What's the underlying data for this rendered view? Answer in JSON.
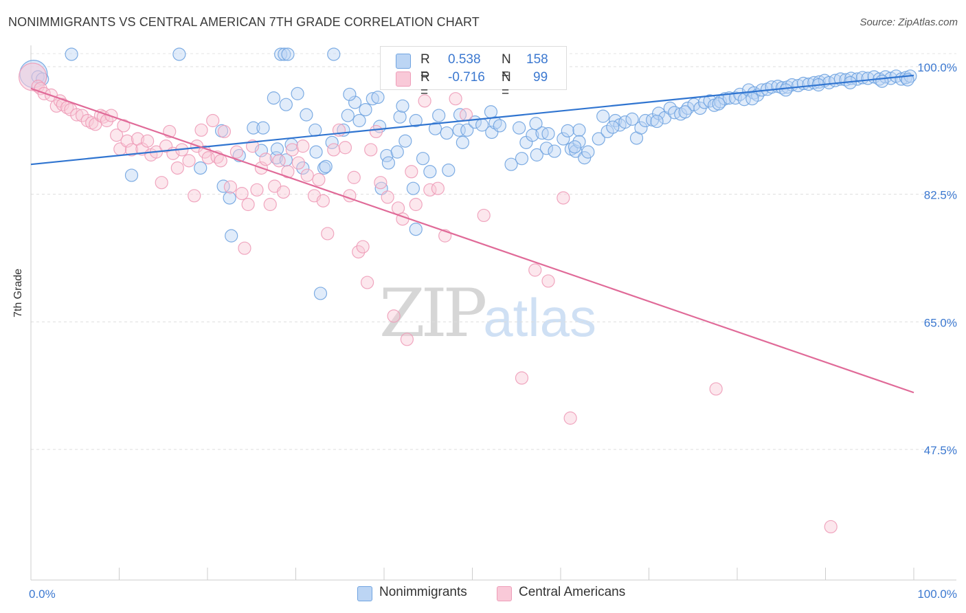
{
  "header": {
    "title": "NONIMMIGRANTS VS CENTRAL AMERICAN 7TH GRADE CORRELATION CHART",
    "source": "Source: ZipAtlas.com"
  },
  "watermark": {
    "zip": "ZIP",
    "atlas": "atlas"
  },
  "legend": {
    "rows": [
      {
        "r_label": "R =",
        "r_value": "0.538",
        "n_label": "N =",
        "n_value": "158",
        "color": "#a8c8f0"
      },
      {
        "r_label": "R =",
        "r_value": "-0.716",
        "n_label": "N =",
        "n_value": "99",
        "color": "#f6b8cb"
      }
    ]
  },
  "bottom_legend": [
    {
      "label": "Nonimmigrants",
      "color": "#a8c8f0"
    },
    {
      "label": "Central Americans",
      "color": "#f6b8cb"
    }
  ],
  "chart_data": {
    "type": "scatter",
    "title": "NONIMMIGRANTS VS CENTRAL AMERICAN 7TH GRADE CORRELATION CHART",
    "xlabel": "",
    "ylabel": "7th Grade",
    "xlim": [
      0,
      100
    ],
    "ylim": [
      32,
      100
    ],
    "x_tick_labels": [
      "0.0%",
      "100.0%"
    ],
    "y_ticks": [
      100,
      82.5,
      65,
      47.5
    ],
    "y_tick_labels": [
      "100.0%",
      "82.5%",
      "65.0%",
      "47.5%"
    ],
    "grid": true,
    "colors": {
      "blue_fill": "#a8c8f0",
      "blue_line": "#2f74d0",
      "pink_fill": "#f6b8cb",
      "pink_line": "#e06a98",
      "axis_text": "#3b78d0"
    },
    "series": [
      {
        "name": "Nonimmigrants",
        "color": "#6fa3e0",
        "trend": {
          "x": [
            0,
            100
          ],
          "y": [
            86.6,
            98.8
          ]
        },
        "points": [
          [
            0.3,
            99.0
          ],
          [
            0.8,
            98.6
          ],
          [
            1.3,
            98.3
          ],
          [
            4.6,
            101.7
          ],
          [
            11.4,
            85.1
          ],
          [
            16.8,
            101.7
          ],
          [
            19.2,
            86.1
          ],
          [
            21.6,
            91.2
          ],
          [
            21.8,
            83.6
          ],
          [
            22.5,
            82.0
          ],
          [
            22.7,
            76.8
          ],
          [
            23.6,
            87.8
          ],
          [
            25.2,
            91.6
          ],
          [
            26.1,
            88.5
          ],
          [
            26.3,
            91.6
          ],
          [
            27.5,
            95.7
          ],
          [
            27.8,
            87.5
          ],
          [
            27.9,
            88.7
          ],
          [
            28.3,
            101.7
          ],
          [
            28.7,
            101.7
          ],
          [
            29.1,
            101.7
          ],
          [
            28.9,
            94.8
          ],
          [
            29.5,
            89.3
          ],
          [
            30.2,
            96.3
          ],
          [
            30.8,
            86.1
          ],
          [
            31.2,
            93.4
          ],
          [
            32.2,
            91.3
          ],
          [
            32.3,
            88.3
          ],
          [
            32.8,
            68.9
          ],
          [
            33.2,
            86.1
          ],
          [
            33.4,
            86.3
          ],
          [
            34.1,
            89.6
          ],
          [
            34.3,
            101.7
          ],
          [
            35.4,
            91.3
          ],
          [
            35.9,
            93.3
          ],
          [
            36.7,
            95.1
          ],
          [
            37.2,
            92.6
          ],
          [
            37.9,
            94.1
          ],
          [
            38.7,
            95.6
          ],
          [
            39.3,
            95.8
          ],
          [
            39.5,
            91.8
          ],
          [
            39.7,
            83.3
          ],
          [
            40.3,
            87.8
          ],
          [
            40.5,
            86.8
          ],
          [
            41.5,
            88.3
          ],
          [
            41.8,
            93.1
          ],
          [
            42.4,
            89.8
          ],
          [
            43.3,
            83.3
          ],
          [
            43.6,
            92.6
          ],
          [
            43.6,
            77.7
          ],
          [
            44.4,
            87.4
          ],
          [
            45.2,
            85.6
          ],
          [
            45.8,
            91.5
          ],
          [
            46.2,
            93.3
          ],
          [
            47.3,
            85.8
          ],
          [
            48.5,
            91.3
          ],
          [
            48.6,
            93.4
          ],
          [
            48.9,
            89.6
          ],
          [
            49.4,
            91.3
          ],
          [
            50.3,
            92.4
          ],
          [
            51.1,
            92.0
          ],
          [
            52.2,
            91.0
          ],
          [
            52.6,
            92.3
          ],
          [
            53.1,
            91.9
          ],
          [
            54.4,
            86.6
          ],
          [
            55.3,
            91.6
          ],
          [
            55.6,
            87.4
          ],
          [
            56.1,
            89.6
          ],
          [
            56.8,
            90.6
          ],
          [
            57.3,
            87.9
          ],
          [
            57.9,
            90.9
          ],
          [
            58.4,
            88.8
          ],
          [
            58.6,
            90.8
          ],
          [
            59.3,
            88.4
          ],
          [
            60.3,
            90.1
          ],
          [
            60.8,
            91.2
          ],
          [
            61.2,
            88.7
          ],
          [
            61.7,
            88.4
          ],
          [
            62.1,
            91.3
          ],
          [
            62.7,
            87.5
          ],
          [
            63.1,
            88.3
          ],
          [
            64.3,
            90.1
          ],
          [
            64.8,
            93.2
          ],
          [
            65.3,
            91.1
          ],
          [
            66.2,
            92.6
          ],
          [
            66.7,
            92.0
          ],
          [
            67.3,
            92.4
          ],
          [
            68.1,
            92.8
          ],
          [
            68.6,
            90.2
          ],
          [
            69.1,
            91.6
          ],
          [
            69.6,
            92.6
          ],
          [
            70.4,
            92.7
          ],
          [
            71.1,
            93.6
          ],
          [
            71.8,
            93.0
          ],
          [
            72.4,
            94.3
          ],
          [
            72.9,
            93.7
          ],
          [
            73.6,
            93.5
          ],
          [
            74.4,
            94.3
          ],
          [
            75.1,
            94.8
          ],
          [
            75.8,
            94.3
          ],
          [
            76.3,
            95.1
          ],
          [
            76.9,
            95.3
          ],
          [
            77.4,
            94.7
          ],
          [
            78.1,
            95.2
          ],
          [
            78.6,
            95.6
          ],
          [
            79.1,
            95.7
          ],
          [
            79.8,
            95.7
          ],
          [
            80.3,
            96.2
          ],
          [
            80.8,
            95.5
          ],
          [
            81.3,
            96.8
          ],
          [
            81.9,
            96.4
          ],
          [
            82.3,
            96.1
          ],
          [
            82.8,
            96.8
          ],
          [
            83.4,
            96.9
          ],
          [
            83.9,
            97.2
          ],
          [
            84.6,
            97.3
          ],
          [
            85.1,
            97.1
          ],
          [
            85.7,
            97.2
          ],
          [
            86.2,
            97.5
          ],
          [
            86.9,
            97.4
          ],
          [
            87.5,
            97.7
          ],
          [
            88.1,
            97.6
          ],
          [
            88.7,
            97.8
          ],
          [
            89.3,
            97.9
          ],
          [
            89.9,
            98.1
          ],
          [
            90.4,
            97.8
          ],
          [
            91.1,
            98.1
          ],
          [
            91.7,
            98.3
          ],
          [
            92.3,
            98.2
          ],
          [
            92.9,
            98.4
          ],
          [
            93.6,
            98.3
          ],
          [
            94.2,
            98.5
          ],
          [
            94.8,
            98.4
          ],
          [
            95.5,
            98.6
          ],
          [
            96.1,
            98.3
          ],
          [
            96.8,
            98.6
          ],
          [
            97.4,
            98.4
          ],
          [
            98.0,
            98.7
          ],
          [
            98.6,
            98.3
          ],
          [
            99.1,
            98.5
          ],
          [
            99.6,
            98.7
          ],
          [
            28.9,
            87.2
          ],
          [
            36.1,
            96.2
          ],
          [
            42.1,
            94.6
          ],
          [
            47.1,
            90.9
          ],
          [
            52.1,
            93.8
          ],
          [
            57.2,
            92.2
          ],
          [
            62.1,
            89.7
          ],
          [
            65.9,
            91.7
          ],
          [
            70.9,
            92.5
          ],
          [
            74.1,
            93.8
          ],
          [
            77.9,
            94.9
          ],
          [
            81.7,
            95.6
          ],
          [
            85.5,
            96.8
          ],
          [
            89.2,
            97.5
          ],
          [
            92.8,
            97.8
          ],
          [
            96.4,
            98.0
          ],
          [
            99.3,
            98.2
          ],
          [
            61.6,
            89.0
          ]
        ]
      },
      {
        "name": "Central Americans",
        "color": "#ee9cb8",
        "trend": {
          "x": [
            0,
            100
          ],
          "y": [
            97.0,
            55.3
          ]
        },
        "points": [
          [
            0.2,
            98.6
          ],
          [
            0.8,
            97.3
          ],
          [
            1.1,
            97.0
          ],
          [
            1.5,
            96.3
          ],
          [
            2.3,
            96.1
          ],
          [
            2.9,
            94.6
          ],
          [
            3.3,
            95.3
          ],
          [
            3.6,
            94.8
          ],
          [
            4.1,
            94.4
          ],
          [
            4.5,
            94.1
          ],
          [
            5.2,
            93.4
          ],
          [
            5.8,
            93.3
          ],
          [
            6.4,
            92.6
          ],
          [
            6.9,
            92.3
          ],
          [
            7.3,
            92.1
          ],
          [
            7.9,
            93.3
          ],
          [
            8.2,
            93.1
          ],
          [
            8.6,
            92.6
          ],
          [
            9.1,
            93.3
          ],
          [
            9.7,
            90.6
          ],
          [
            10.1,
            88.7
          ],
          [
            10.5,
            91.9
          ],
          [
            10.9,
            89.8
          ],
          [
            11.4,
            88.6
          ],
          [
            12.1,
            90.1
          ],
          [
            12.6,
            88.7
          ],
          [
            13.2,
            89.8
          ],
          [
            13.6,
            87.9
          ],
          [
            14.2,
            88.3
          ],
          [
            14.8,
            84.1
          ],
          [
            15.3,
            89.1
          ],
          [
            15.7,
            91.1
          ],
          [
            16.1,
            88.1
          ],
          [
            16.6,
            86.1
          ],
          [
            17.1,
            88.6
          ],
          [
            17.9,
            87.1
          ],
          [
            18.5,
            82.3
          ],
          [
            18.8,
            89.1
          ],
          [
            19.3,
            91.3
          ],
          [
            19.7,
            88.3
          ],
          [
            20.1,
            87.5
          ],
          [
            20.6,
            92.6
          ],
          [
            21.1,
            87.6
          ],
          [
            21.5,
            87.1
          ],
          [
            21.9,
            91.1
          ],
          [
            22.6,
            83.5
          ],
          [
            23.3,
            88.3
          ],
          [
            23.9,
            82.6
          ],
          [
            24.2,
            75.1
          ],
          [
            24.6,
            81.1
          ],
          [
            25.1,
            89.1
          ],
          [
            25.6,
            83.1
          ],
          [
            26.1,
            86.1
          ],
          [
            26.6,
            87.3
          ],
          [
            27.1,
            81.1
          ],
          [
            27.6,
            83.6
          ],
          [
            28.1,
            87.1
          ],
          [
            28.6,
            82.8
          ],
          [
            29.1,
            85.6
          ],
          [
            29.6,
            88.6
          ],
          [
            30.3,
            86.8
          ],
          [
            30.8,
            89.1
          ],
          [
            31.3,
            85.1
          ],
          [
            32.1,
            82.3
          ],
          [
            32.6,
            84.5
          ],
          [
            33.1,
            81.6
          ],
          [
            33.6,
            77.1
          ],
          [
            34.3,
            88.6
          ],
          [
            34.9,
            91.3
          ],
          [
            35.6,
            88.9
          ],
          [
            36.1,
            82.3
          ],
          [
            36.6,
            84.8
          ],
          [
            37.1,
            74.6
          ],
          [
            37.6,
            75.3
          ],
          [
            38.1,
            70.4
          ],
          [
            38.5,
            88.6
          ],
          [
            39.1,
            91.1
          ],
          [
            39.6,
            84.1
          ],
          [
            40.4,
            82.1
          ],
          [
            41.1,
            65.8
          ],
          [
            41.6,
            80.6
          ],
          [
            42.1,
            79.1
          ],
          [
            42.6,
            62.6
          ],
          [
            43.1,
            85.6
          ],
          [
            43.6,
            81.1
          ],
          [
            44.6,
            95.3
          ],
          [
            45.2,
            83.1
          ],
          [
            46.1,
            83.3
          ],
          [
            46.9,
            76.8
          ],
          [
            48.1,
            95.6
          ],
          [
            49.3,
            93.4
          ],
          [
            51.3,
            79.6
          ],
          [
            55.6,
            57.3
          ],
          [
            57.1,
            72.1
          ],
          [
            58.6,
            70.6
          ],
          [
            60.3,
            82.0
          ],
          [
            61.1,
            51.8
          ],
          [
            77.6,
            55.8
          ],
          [
            90.6,
            36.9
          ]
        ]
      }
    ]
  }
}
